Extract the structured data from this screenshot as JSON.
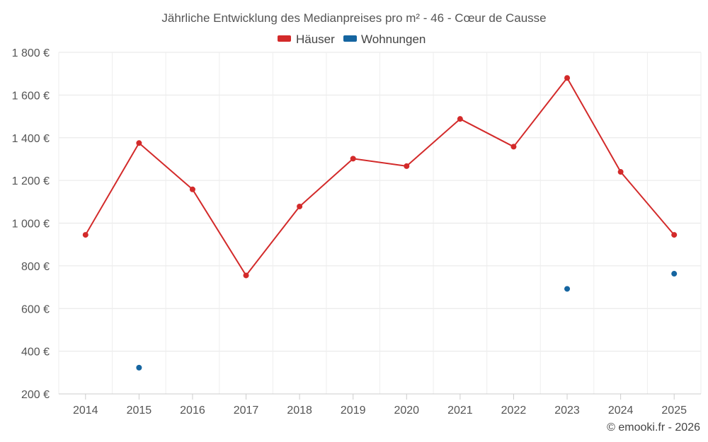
{
  "chart_data": {
    "type": "line",
    "title": "Jährliche Entwicklung des Medianpreises pro m² - 46 - Cœur de Causse",
    "categories": [
      "2014",
      "2015",
      "2016",
      "2017",
      "2018",
      "2019",
      "2020",
      "2021",
      "2022",
      "2023",
      "2024",
      "2025"
    ],
    "series": [
      {
        "name": "Häuser",
        "color": "#d32a2a",
        "values": [
          945,
          1375,
          1158,
          755,
          1078,
          1302,
          1267,
          1488,
          1358,
          1680,
          1240,
          945
        ]
      },
      {
        "name": "Wohnungen",
        "color": "#1565a0",
        "values": [
          null,
          323,
          null,
          null,
          null,
          null,
          null,
          null,
          null,
          692,
          null,
          763
        ]
      }
    ],
    "ylim": [
      200,
      1800
    ],
    "yticks": [
      200,
      400,
      600,
      800,
      1000,
      1200,
      1400,
      1600,
      1800
    ],
    "ytick_labels": [
      "200 €",
      "400 €",
      "600 €",
      "800 €",
      "1 000 €",
      "1 200 €",
      "1 400 €",
      "1 600 €",
      "1 800 €"
    ],
    "legend_position": "top-center",
    "grid": true
  },
  "credit": "© emooki.fr - 2026"
}
